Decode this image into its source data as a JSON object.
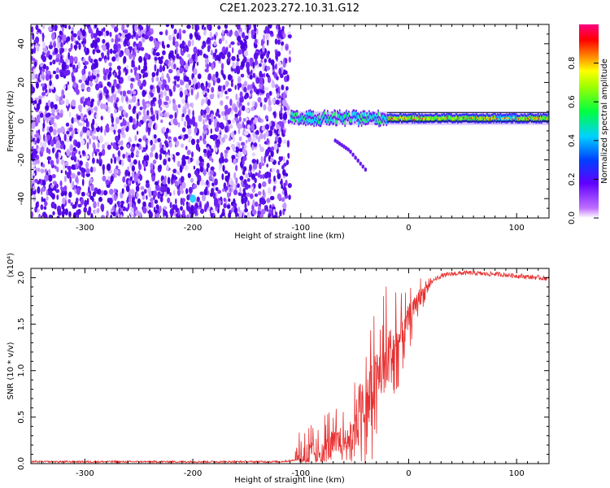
{
  "title": "C2E1.2023.272.10.31.G12",
  "colors": {
    "snr_line": "#e83030",
    "spectrum_dots": "#6a1ef0"
  },
  "chart_data": [
    {
      "type": "heatmap",
      "name": "spectrogram",
      "xlabel": "Height of straight line (km)",
      "ylabel": "Frequency (Hz)",
      "xlim": [
        -350,
        130
      ],
      "ylim": [
        -50,
        50
      ],
      "xticks": [
        -300,
        -200,
        -100,
        0,
        100
      ],
      "yticks": [
        -40,
        -20,
        0,
        20,
        40
      ],
      "colorbar": {
        "label": "Normalized spectral amplitude",
        "range": [
          0,
          1
        ],
        "ticks": [
          "0.0",
          "0.2",
          "0.4",
          "0.6",
          "0.8"
        ],
        "colormap": "rainbow (white-violet-blue-cyan-green-yellow-red-magenta)"
      },
      "features": {
        "noise_region_x": [
          -350,
          -110
        ],
        "carrier_frequency_hz": 1.5,
        "carrier_x": [
          -110,
          130
        ],
        "secondary_track": [
          [
            -68,
            -10
          ],
          [
            -55,
            -15
          ],
          [
            -40,
            -25
          ]
        ]
      }
    },
    {
      "type": "line",
      "name": "snr",
      "xlabel": "Height of straight line (km)",
      "ylabel": "SNR (10 * v/v)",
      "yscale_label": "(x10⁴)",
      "xlim": [
        -350,
        130
      ],
      "ylim": [
        0,
        2.1
      ],
      "xticks": [
        -300,
        -200,
        -100,
        0,
        100
      ],
      "yticks": [
        "0.0",
        "0.5",
        "1.0",
        "1.5",
        "2.0"
      ],
      "series": [
        {
          "x": [
            -350,
            -300,
            -250,
            -200,
            -150,
            -120,
            -110,
            -100,
            -90,
            -80,
            -70,
            -60,
            -50,
            -40,
            -30,
            -20,
            -10,
            0,
            10,
            20,
            30,
            40,
            50,
            60,
            70,
            80,
            90,
            100,
            110,
            120,
            130
          ],
          "y": [
            0.02,
            0.02,
            0.02,
            0.02,
            0.02,
            0.02,
            0.03,
            0.05,
            0.1,
            0.15,
            0.2,
            0.25,
            0.4,
            0.6,
            0.9,
            1.1,
            1.3,
            1.55,
            1.8,
            1.95,
            2.02,
            2.04,
            2.05,
            2.05,
            2.04,
            2.04,
            2.03,
            2.02,
            2.01,
            2.0,
            1.99
          ]
        }
      ]
    }
  ]
}
